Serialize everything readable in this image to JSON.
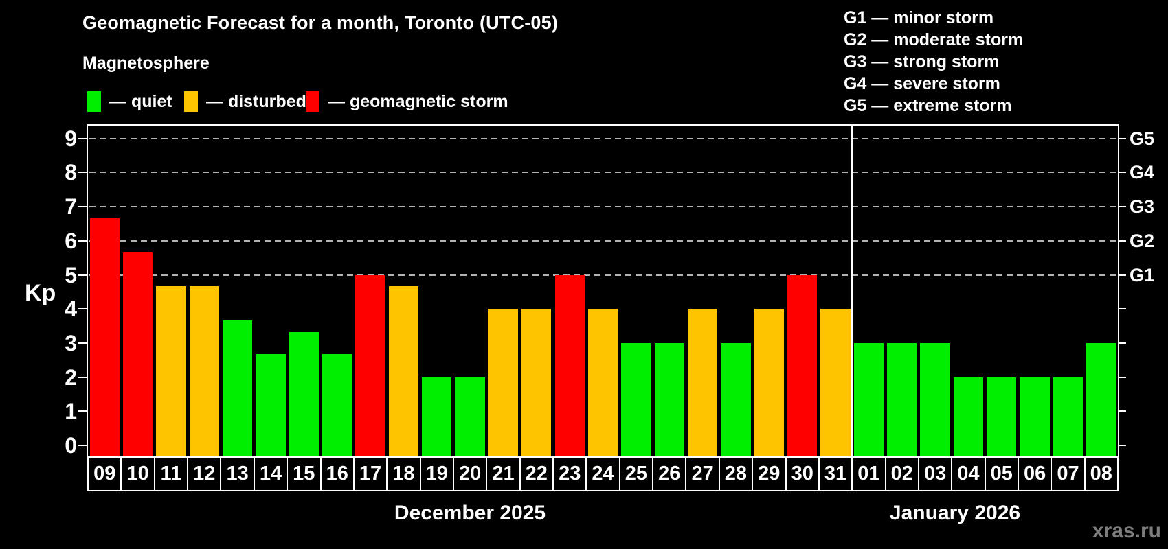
{
  "header": {
    "title": "Geomagnetic Forecast for a month, Toronto (UTC-05)",
    "subtitle": "Magnetosphere"
  },
  "legend": {
    "items": [
      {
        "label": "— quiet",
        "status": "quiet",
        "color": "#00ee00"
      },
      {
        "label": "— disturbed",
        "status": "disturbed",
        "color": "#ffc400"
      },
      {
        "label": "— geomagnetic storm",
        "status": "storm",
        "color": "#ff0000"
      }
    ]
  },
  "storm_scale": {
    "lines": [
      "G1 — minor storm",
      "G2 — moderate storm",
      "G3 — strong storm",
      "G4 — severe storm",
      "G5 — extreme storm"
    ]
  },
  "watermark": "xras.ru",
  "chart_data": {
    "type": "bar",
    "title": "Geomagnetic Forecast for a month, Toronto (UTC-05)",
    "ylabel": "Kp",
    "xlabel": "",
    "ylim": [
      0,
      9.4
    ],
    "y_ticks": [
      0,
      1,
      2,
      3,
      4,
      5,
      6,
      7,
      8,
      9
    ],
    "gridlines_at": [
      5,
      6,
      7,
      8,
      9
    ],
    "grid": "dashed",
    "legend_position": "top-left",
    "right_axis_labels": [
      {
        "label": "G1",
        "kp": 5
      },
      {
        "label": "G2",
        "kp": 6
      },
      {
        "label": "G3",
        "kp": 7
      },
      {
        "label": "G4",
        "kp": 8
      },
      {
        "label": "G5",
        "kp": 9
      }
    ],
    "months": [
      {
        "label": "December 2025",
        "count": 23
      },
      {
        "label": "January 2026",
        "count": 8
      }
    ],
    "categories": [
      "09",
      "10",
      "11",
      "12",
      "13",
      "14",
      "15",
      "16",
      "17",
      "18",
      "19",
      "20",
      "21",
      "22",
      "23",
      "24",
      "25",
      "26",
      "27",
      "28",
      "29",
      "30",
      "31",
      "01",
      "02",
      "03",
      "04",
      "05",
      "06",
      "07",
      "08"
    ],
    "values": [
      6.67,
      5.67,
      4.67,
      4.67,
      3.67,
      2.67,
      3.33,
      2.67,
      5,
      4.67,
      2,
      2,
      4,
      4,
      5,
      4,
      3,
      3,
      4,
      3,
      4,
      5,
      4,
      3,
      3,
      3,
      2,
      2,
      2,
      2,
      3
    ],
    "statuses": [
      "storm",
      "storm",
      "disturbed",
      "disturbed",
      "quiet",
      "quiet",
      "quiet",
      "quiet",
      "storm",
      "disturbed",
      "quiet",
      "quiet",
      "disturbed",
      "disturbed",
      "storm",
      "disturbed",
      "quiet",
      "quiet",
      "disturbed",
      "quiet",
      "disturbed",
      "storm",
      "disturbed",
      "quiet",
      "quiet",
      "quiet",
      "quiet",
      "quiet",
      "quiet",
      "quiet",
      "quiet"
    ]
  }
}
